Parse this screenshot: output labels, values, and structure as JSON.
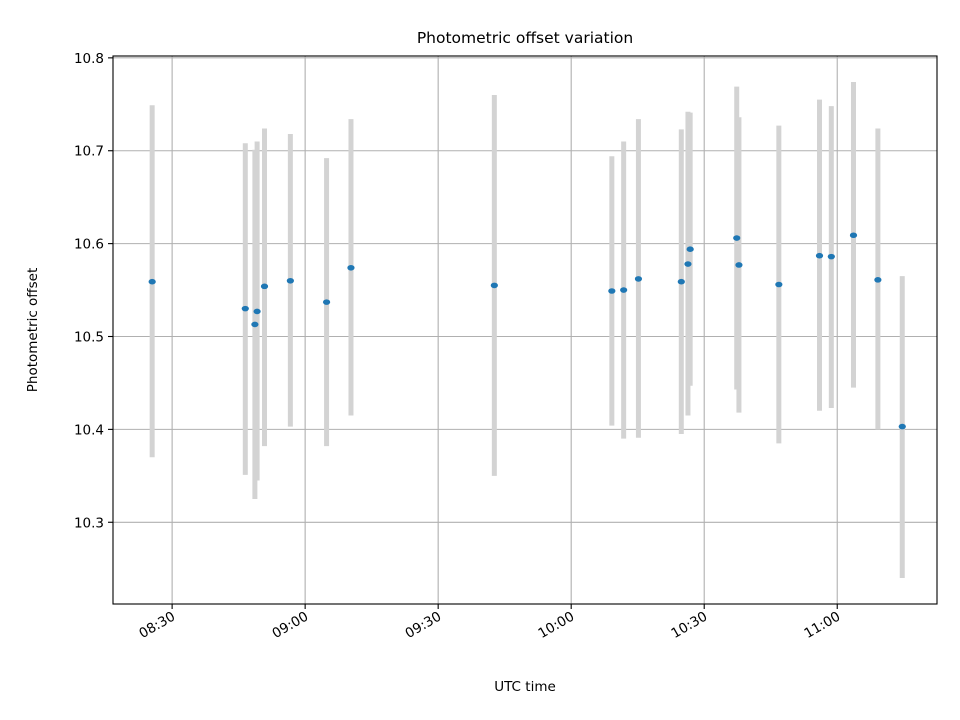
{
  "chart_data": {
    "type": "scatter",
    "title": "Photometric offset variation",
    "xlabel": "UTC time",
    "ylabel": "Photometric offset",
    "xlim": [
      "08:16:40",
      "11:22:30"
    ],
    "ylim": [
      10.212,
      10.802
    ],
    "x_ticks": [
      "08:30",
      "09:00",
      "09:30",
      "10:00",
      "10:30",
      "11:00"
    ],
    "y_ticks": [
      "10.3",
      "10.4",
      "10.5",
      "10.6",
      "10.7",
      "10.8"
    ],
    "grid": true,
    "legend": "none",
    "colors": {
      "point": "#1f77b4",
      "errorbar": "#d3d3d3",
      "grid": "#b0b0b0"
    },
    "points": [
      {
        "x": "08:25:30",
        "y": 10.559,
        "ylo": 10.37,
        "yhi": 10.749
      },
      {
        "x": "08:46:30",
        "y": 10.53,
        "ylo": 10.351,
        "yhi": 10.708
      },
      {
        "x": "08:48:40",
        "y": 10.513,
        "ylo": 10.325,
        "yhi": 10.701
      },
      {
        "x": "08:49:10",
        "y": 10.527,
        "ylo": 10.345,
        "yhi": 10.71
      },
      {
        "x": "08:50:50",
        "y": 10.554,
        "ylo": 10.382,
        "yhi": 10.724
      },
      {
        "x": "08:56:40",
        "y": 10.56,
        "ylo": 10.403,
        "yhi": 10.718
      },
      {
        "x": "09:04:50",
        "y": 10.537,
        "ylo": 10.382,
        "yhi": 10.692
      },
      {
        "x": "09:10:20",
        "y": 10.574,
        "ylo": 10.415,
        "yhi": 10.734
      },
      {
        "x": "09:42:40",
        "y": 10.555,
        "ylo": 10.35,
        "yhi": 10.76
      },
      {
        "x": "10:09:10",
        "y": 10.549,
        "ylo": 10.404,
        "yhi": 10.694
      },
      {
        "x": "10:11:50",
        "y": 10.55,
        "ylo": 10.39,
        "yhi": 10.71
      },
      {
        "x": "10:15:10",
        "y": 10.562,
        "ylo": 10.391,
        "yhi": 10.734
      },
      {
        "x": "10:24:50",
        "y": 10.559,
        "ylo": 10.395,
        "yhi": 10.723
      },
      {
        "x": "10:26:20",
        "y": 10.578,
        "ylo": 10.415,
        "yhi": 10.742
      },
      {
        "x": "10:26:50",
        "y": 10.594,
        "ylo": 10.447,
        "yhi": 10.741
      },
      {
        "x": "10:37:20",
        "y": 10.606,
        "ylo": 10.443,
        "yhi": 10.769
      },
      {
        "x": "10:37:50",
        "y": 10.577,
        "ylo": 10.418,
        "yhi": 10.736
      },
      {
        "x": "10:46:50",
        "y": 10.556,
        "ylo": 10.385,
        "yhi": 10.727
      },
      {
        "x": "10:56:00",
        "y": 10.587,
        "ylo": 10.42,
        "yhi": 10.755
      },
      {
        "x": "10:58:40",
        "y": 10.586,
        "ylo": 10.423,
        "yhi": 10.748
      },
      {
        "x": "11:03:40",
        "y": 10.609,
        "ylo": 10.445,
        "yhi": 10.774
      },
      {
        "x": "11:09:10",
        "y": 10.561,
        "ylo": 10.4,
        "yhi": 10.724
      },
      {
        "x": "11:14:40",
        "y": 10.403,
        "ylo": 10.24,
        "yhi": 10.565
      }
    ]
  }
}
